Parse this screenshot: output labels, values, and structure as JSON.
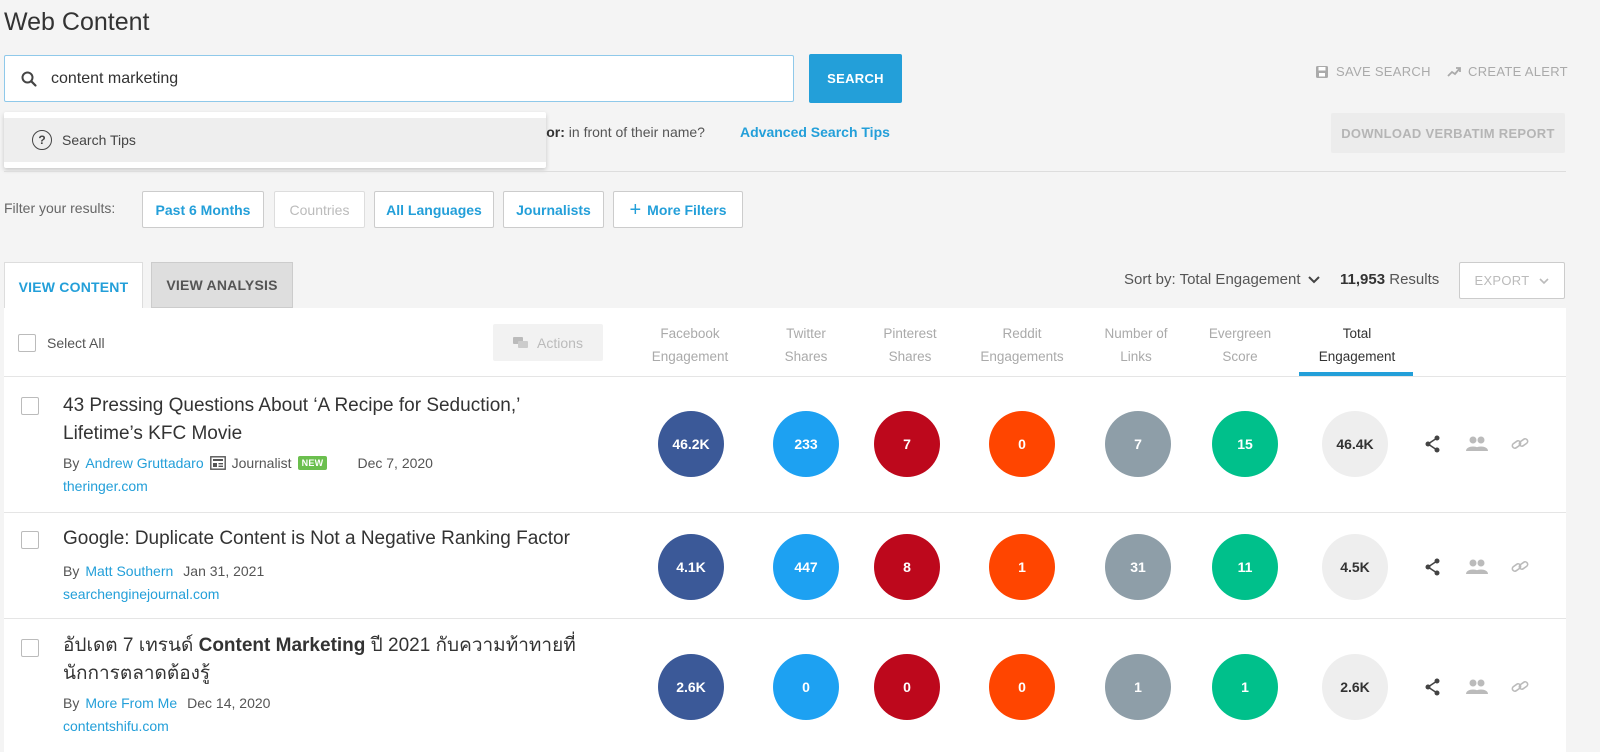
{
  "page_title": "Web Content",
  "search": {
    "value": "content marketing",
    "button_label": "SEARCH",
    "tips_label": "Search Tips",
    "author_hint_bold": "thor:",
    "author_hint_rest": " in front of their name?",
    "advanced_tips_label": "Advanced Search Tips"
  },
  "top_actions": {
    "save_search": "SAVE SEARCH",
    "create_alert": "CREATE ALERT",
    "download_report": "DOWNLOAD VERBATIM REPORT"
  },
  "filters": {
    "label": "Filter your results:",
    "items": [
      "Past 6 Months",
      "Countries",
      "All Languages",
      "Journalists",
      "More Filters"
    ]
  },
  "tabs": [
    "VIEW CONTENT",
    "VIEW ANALYSIS"
  ],
  "sort": {
    "label": "Sort by: Total Engagement",
    "results_count": "11,953",
    "results_label": " Results",
    "export_label": "EXPORT"
  },
  "table": {
    "select_all": "Select All",
    "actions": "Actions",
    "columns": [
      {
        "line1": "Facebook",
        "line2": "Engagement"
      },
      {
        "line1": "Twitter",
        "line2": "Shares"
      },
      {
        "line1": "Pinterest",
        "line2": "Shares"
      },
      {
        "line1": "Reddit",
        "line2": "Engagements"
      },
      {
        "line1": "Number of",
        "line2": "Links"
      },
      {
        "line1": "Evergreen",
        "line2": "Score"
      },
      {
        "line1": "Total",
        "line2": "Engagement"
      }
    ],
    "rows": [
      {
        "title_line1": "43 Pressing Questions About ‘A Recipe for Seduction,’",
        "title_line2": "Lifetime’s KFC Movie",
        "by": "By",
        "author": "Andrew Gruttadaro",
        "journalist": "Journalist",
        "badge": "NEW",
        "date": "Dec 7, 2020",
        "domain": "theringer.com",
        "facebook": "46.2K",
        "twitter": "233",
        "pinterest": "7",
        "reddit": "0",
        "links": "7",
        "evergreen": "15",
        "total": "46.4K"
      },
      {
        "title_line1": "Google: Duplicate Content is Not a Negative Ranking Factor",
        "by": "By",
        "author": "Matt Southern",
        "date": "Jan 31, 2021",
        "domain": "searchenginejournal.com",
        "facebook": "4.1K",
        "twitter": "447",
        "pinterest": "8",
        "reddit": "1",
        "links": "31",
        "evergreen": "11",
        "total": "4.5K"
      },
      {
        "title_pre": "อัปเดต 7 เทรนด์ ",
        "title_bold": "Content Marketing",
        "title_post": " ปี 2021 กับความท้าทายที่",
        "title_line2": "นักการตลาดต้องรู้",
        "by": "By",
        "author": "More From Me",
        "date": "Dec 14, 2020",
        "domain": "contentshifu.com",
        "facebook": "2.6K",
        "twitter": "0",
        "pinterest": "0",
        "reddit": "0",
        "links": "1",
        "evergreen": "1",
        "total": "2.6K"
      }
    ]
  },
  "colors": {
    "accent": "#239fd9",
    "facebook": "#3b5998",
    "twitter": "#1da1f2",
    "pinterest": "#bd081c",
    "reddit": "#ff4500",
    "links": "#8e9ea8",
    "evergreen": "#00c08b",
    "total": "#eeeeee"
  },
  "icons": [
    "search-icon",
    "save-icon",
    "trending-icon",
    "help-icon",
    "plus-icon",
    "chevron-down-icon",
    "chat-icon",
    "journalist-icon",
    "share-icon",
    "people-icon",
    "link-icon"
  ]
}
